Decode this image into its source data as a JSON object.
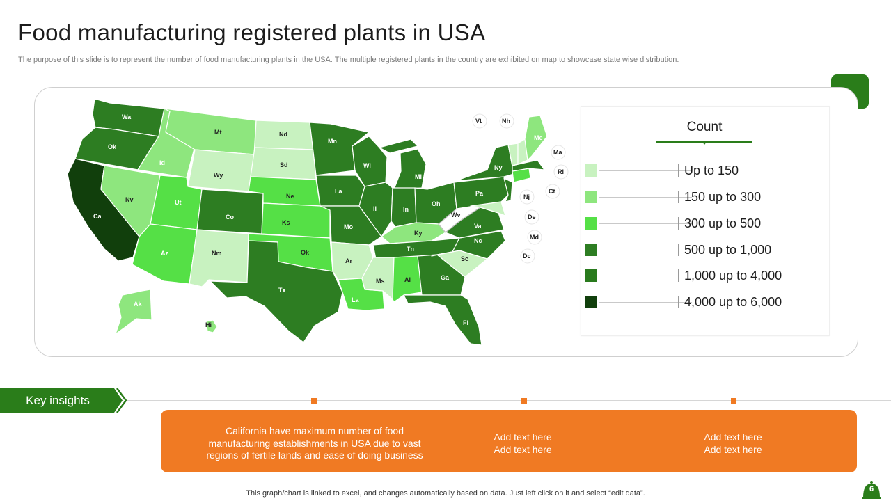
{
  "header": {
    "title": "Food manufacturing registered plants in USA",
    "subtitle": "The purpose of this slide is to represent the number of food manufacturing plants in the USA. The multiple registered plants in the country are exhibited on map to showcase state wise distribution."
  },
  "colors": {
    "level1": "#c8f2c0",
    "level2": "#8ee67e",
    "level3": "#55e046",
    "level4": "#2d7d22",
    "level5": "#297a1d",
    "level6": "#113f0c",
    "accent_green": "#2a7d1a",
    "accent_orange": "#f07a23"
  },
  "map": {
    "states": {
      "wa": "Wa",
      "ok_or": "Ok",
      "id": "Id",
      "mt": "Mt",
      "nd": "Nd",
      "sd": "Sd",
      "wy": "Wy",
      "nv": "Nv",
      "ca": "Ca",
      "ut": "Ut",
      "co": "Co",
      "ne": "Ne",
      "ks": "Ks",
      "az": "Az",
      "nm": "Nm",
      "ok": "Ok",
      "tx": "Tx",
      "mn": "Mn",
      "la_ia": "La",
      "mo": "Mo",
      "ar": "Ar",
      "la": "La",
      "wi": "Wi",
      "il": "Il",
      "mi": "Mi",
      "in": "In",
      "oh": "Oh",
      "ky": "Ky",
      "tn": "Tn",
      "ms": "Ms",
      "al": "Al",
      "ga": "Ga",
      "fl": "Fl",
      "sc": "Sc",
      "nc": "Nc",
      "va": "Va",
      "wv": "Wv",
      "pa": "Pa",
      "ny": "Ny",
      "me": "Me",
      "ak": "Ak",
      "hi": "Hi"
    },
    "callouts": {
      "vt": "Vt",
      "nh": "Nh",
      "ma": "Ma",
      "ri": "Ri",
      "ct": "Ct",
      "nj": "Nj",
      "de": "De",
      "md": "Md",
      "dc": "Dc"
    }
  },
  "legend": {
    "title": "Count",
    "items": [
      {
        "label": "Up to 150",
        "color": "#c8f2c0"
      },
      {
        "label": "150 up to 300",
        "color": "#8ee67e"
      },
      {
        "label": "300 up to 500",
        "color": "#55e046"
      },
      {
        "label": "500 up to 1,000",
        "color": "#2d7d22"
      },
      {
        "label": "1,000 up to 4,000",
        "color": "#297a1d"
      },
      {
        "label": "4,000 up to 6,000",
        "color": "#113f0c"
      }
    ]
  },
  "insights": {
    "tab_label": "Key insights",
    "col1": [
      "California have maximum number of food",
      "manufacturing establishments in USA due to vast",
      "regions of fertile lands and ease of doing business"
    ],
    "col2": [
      "Add text here",
      "Add text here"
    ],
    "col3": [
      "Add text here",
      "Add text here"
    ]
  },
  "footer": {
    "note": "This graph/chart is linked to excel,  and changes automatically based on data. Just left click on it and select “edit data”.",
    "page_number": "6"
  }
}
